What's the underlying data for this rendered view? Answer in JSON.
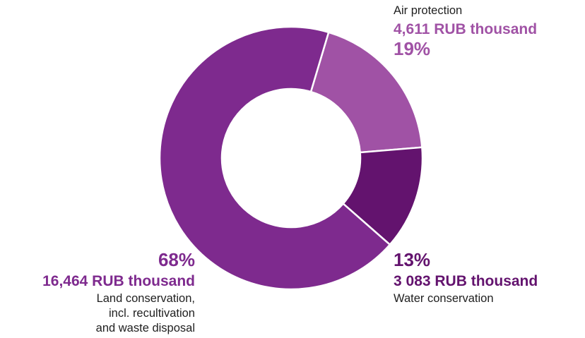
{
  "chart_data": {
    "type": "pie",
    "variant": "donut",
    "unit": "RUB thousand",
    "slices": [
      {
        "name": "Air protection",
        "value": 4611,
        "value_text": "4,611 RUB thousand",
        "percent_text": "19%",
        "color": "#a052a5"
      },
      {
        "name": "Water conservation",
        "value": 3083,
        "value_text": "3 083 RUB thousand",
        "percent_text": "13%",
        "color": "#63136e"
      },
      {
        "name_lines": [
          "Land conservation,",
          "incl. recultivation",
          "and waste disposal"
        ],
        "value": 16464,
        "value_text": "16,464 RUB thousand",
        "percent_text": "68%",
        "color": "#7e2a8e"
      }
    ]
  }
}
